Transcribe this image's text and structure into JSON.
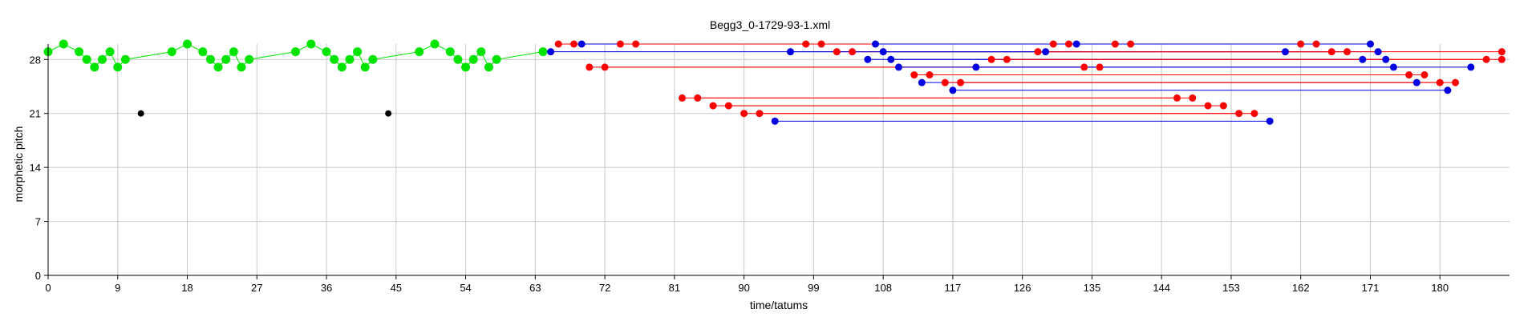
{
  "chart_data": {
    "type": "scatter",
    "title": "Begg3_0-1729-93-1.xml",
    "xlabel": "time/tatums",
    "ylabel": "morphetic pitch",
    "xlim": [
      0,
      189
    ],
    "ylim": [
      0,
      30
    ],
    "x_ticks": [
      0,
      9,
      18,
      27,
      36,
      45,
      54,
      63,
      72,
      81,
      90,
      99,
      108,
      117,
      126,
      135,
      144,
      153,
      162,
      171,
      180
    ],
    "y_ticks": [
      0,
      7,
      14,
      21,
      28
    ],
    "grid": true,
    "colors": {
      "green": "#00e400",
      "red": "#ff0000",
      "blue": "#0000e0",
      "black": "#000000",
      "grid": "#c8c8c8"
    },
    "melody": {
      "x": [
        0,
        2,
        4,
        5,
        6,
        7,
        8,
        9,
        10,
        16,
        18,
        20,
        21,
        22,
        23,
        24,
        25,
        26,
        32,
        34,
        36,
        37,
        38,
        39,
        40,
        41,
        42,
        48,
        50,
        52,
        53,
        54,
        55,
        56,
        57,
        58,
        64
      ],
      "y": [
        29,
        30,
        29,
        28,
        27,
        28,
        29,
        27,
        28,
        29,
        30,
        29,
        28,
        27,
        28,
        29,
        27,
        28,
        29,
        30,
        29,
        28,
        27,
        28,
        29,
        27,
        28,
        29,
        30,
        29,
        28,
        27,
        28,
        29,
        27,
        28,
        29
      ]
    },
    "black_points": [
      [
        12,
        21
      ],
      [
        44,
        21
      ]
    ],
    "segments": [
      {
        "color": "red",
        "y": 30,
        "x0": 66,
        "x1": 132
      },
      {
        "color": "red",
        "y": 30,
        "x0": 68,
        "x1": 130
      },
      {
        "color": "blue",
        "y": 30,
        "x0": 69,
        "x1": 133
      },
      {
        "color": "red",
        "y": 30,
        "x0": 74,
        "x1": 138
      },
      {
        "color": "red",
        "y": 30,
        "x0": 76,
        "x1": 140
      },
      {
        "color": "red",
        "y": 30,
        "x0": 98,
        "x1": 162
      },
      {
        "color": "red",
        "y": 30,
        "x0": 100,
        "x1": 164
      },
      {
        "color": "blue",
        "y": 30,
        "x0": 107,
        "x1": 171
      },
      {
        "color": "blue",
        "y": 29,
        "x0": 65,
        "x1": 129
      },
      {
        "color": "red",
        "y": 29,
        "x0": 102,
        "x1": 166
      },
      {
        "color": "red",
        "y": 29,
        "x0": 104,
        "x1": 168
      },
      {
        "color": "blue",
        "y": 29,
        "x0": 96,
        "x1": 160
      },
      {
        "color": "blue",
        "y": 29,
        "x0": 108,
        "x1": 172
      },
      {
        "color": "red",
        "y": 29,
        "x0": 128,
        "x1": 188
      },
      {
        "color": "blue",
        "y": 28,
        "x0": 106,
        "x1": 170
      },
      {
        "color": "blue",
        "y": 28,
        "x0": 109,
        "x1": 173
      },
      {
        "color": "red",
        "y": 28,
        "x0": 122,
        "x1": 186
      },
      {
        "color": "red",
        "y": 28,
        "x0": 124,
        "x1": 188
      },
      {
        "color": "red",
        "y": 27,
        "x0": 70,
        "x1": 134
      },
      {
        "color": "red",
        "y": 27,
        "x0": 72,
        "x1": 136
      },
      {
        "color": "blue",
        "y": 27,
        "x0": 110,
        "x1": 174
      },
      {
        "color": "blue",
        "y": 27,
        "x0": 120,
        "x1": 184
      },
      {
        "color": "red",
        "y": 26,
        "x0": 112,
        "x1": 176
      },
      {
        "color": "red",
        "y": 26,
        "x0": 114,
        "x1": 178
      },
      {
        "color": "blue",
        "y": 25,
        "x0": 113,
        "x1": 177
      },
      {
        "color": "red",
        "y": 25,
        "x0": 116,
        "x1": 180
      },
      {
        "color": "red",
        "y": 25,
        "x0": 118,
        "x1": 182
      },
      {
        "color": "blue",
        "y": 24,
        "x0": 117,
        "x1": 181
      },
      {
        "color": "red",
        "y": 23,
        "x0": 82,
        "x1": 146
      },
      {
        "color": "red",
        "y": 23,
        "x0": 84,
        "x1": 148
      },
      {
        "color": "red",
        "y": 22,
        "x0": 86,
        "x1": 150
      },
      {
        "color": "red",
        "y": 22,
        "x0": 88,
        "x1": 152
      },
      {
        "color": "red",
        "y": 21,
        "x0": 90,
        "x1": 154
      },
      {
        "color": "red",
        "y": 21,
        "x0": 92,
        "x1": 156
      },
      {
        "color": "blue",
        "y": 20,
        "x0": 94,
        "x1": 158
      }
    ]
  }
}
